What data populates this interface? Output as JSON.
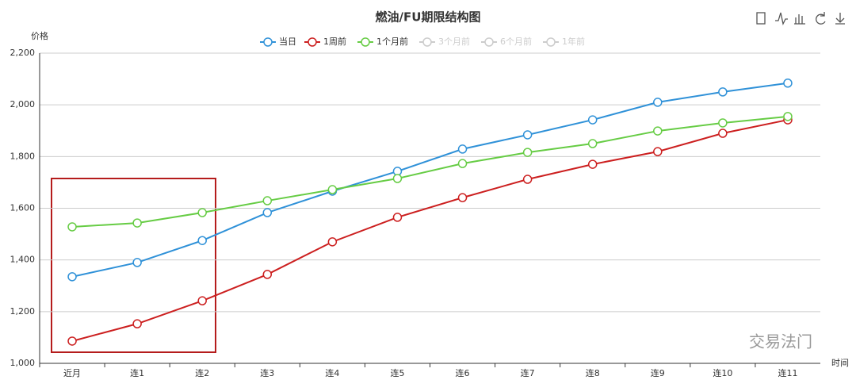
{
  "chart_data": {
    "type": "line",
    "title": "燃油/FU期限结构图",
    "y_label": "价格",
    "x_label": "时间",
    "categories": [
      "近月",
      "连1",
      "连2",
      "连3",
      "连4",
      "连5",
      "连6",
      "连7",
      "连8",
      "连9",
      "连10",
      "连11"
    ],
    "series": [
      {
        "name": "当日",
        "color": "#2f91d8",
        "visible": true,
        "values": [
          1335,
          1390,
          1475,
          1583,
          1666,
          1743,
          1829,
          1884,
          1942,
          2010,
          2050,
          2084
        ]
      },
      {
        "name": "1周前",
        "color": "#cc1f1f",
        "visible": true,
        "values": [
          1086,
          1153,
          1242,
          1344,
          1470,
          1565,
          1641,
          1712,
          1770,
          1819,
          1890,
          1942
        ]
      },
      {
        "name": "1个月前",
        "color": "#66cc44",
        "visible": true,
        "values": [
          1528,
          1543,
          1583,
          1629,
          1672,
          1715,
          1773,
          1816,
          1850,
          1899,
          1930,
          1955
        ]
      },
      {
        "name": "3个月前",
        "color": "#cccccc",
        "visible": false,
        "values": [
          null,
          null,
          null,
          null,
          null,
          null,
          null,
          null,
          null,
          null,
          null,
          null
        ]
      },
      {
        "name": "6个月前",
        "color": "#cccccc",
        "visible": false,
        "values": [
          null,
          null,
          null,
          null,
          null,
          null,
          null,
          null,
          null,
          null,
          null,
          null
        ]
      },
      {
        "name": "1年前",
        "color": "#cccccc",
        "visible": false,
        "values": [
          null,
          null,
          null,
          null,
          null,
          null,
          null,
          null,
          null,
          null,
          null,
          null
        ]
      }
    ],
    "ylim": [
      1000,
      2200
    ],
    "yticks": [
      {
        "value": 1000,
        "label": "1,000"
      },
      {
        "value": 1200,
        "label": "1,200"
      },
      {
        "value": 1400,
        "label": "1,400"
      },
      {
        "value": 1600,
        "label": "1,600"
      },
      {
        "value": 1800,
        "label": "1,800"
      },
      {
        "value": 2000,
        "label": "2,000"
      },
      {
        "value": 2200,
        "label": "2,200"
      }
    ],
    "grid": true,
    "watermark": "交易法门"
  }
}
